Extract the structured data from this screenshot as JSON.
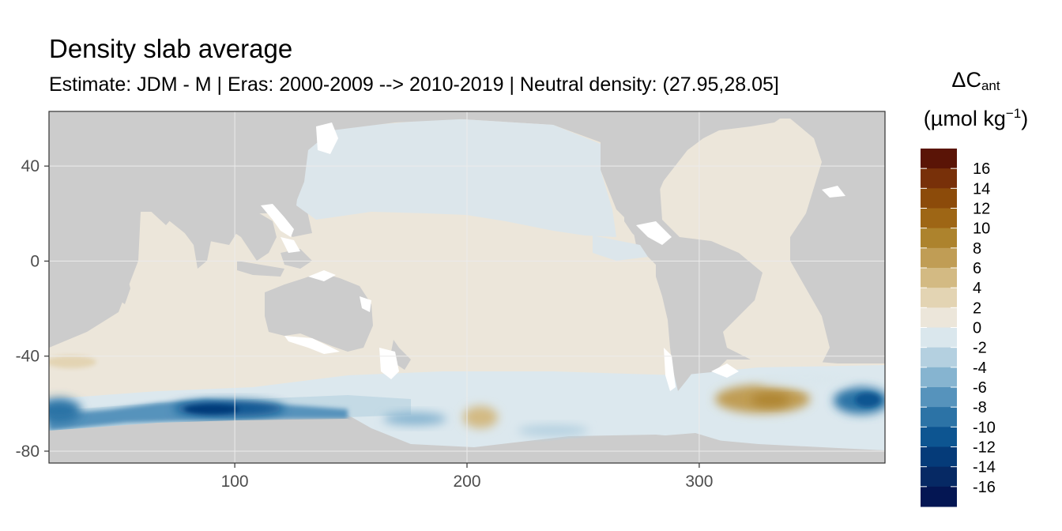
{
  "title": "Density slab average",
  "subtitle": "Estimate: JDM - M | Eras: 2000-2009 --> 2010-2019 | Neutral density: (27.95,28.05]",
  "legend": {
    "symbol": "ΔC",
    "symbol_sub": "ant",
    "unit_open": "(µmol kg",
    "unit_sup": "−1",
    "unit_close": ")",
    "breaks": [
      16,
      14,
      12,
      10,
      8,
      6,
      4,
      2,
      0,
      -2,
      -4,
      -6,
      -8,
      -10,
      -12,
      -14,
      -16
    ],
    "colors": [
      "#5a1406",
      "#783009",
      "#8c4b0a",
      "#9e6615",
      "#ad832d",
      "#c09d55",
      "#d3ba83",
      "#e3d4b3",
      "#ece6da",
      "#dae7ed",
      "#b4d0e0",
      "#86b4d0",
      "#5693bc",
      "#2c73a6",
      "#0d5591",
      "#053b79",
      "#062964",
      "#041653"
    ],
    "placement": "right"
  },
  "chart_data": {
    "type": "heatmap",
    "title": "Density slab average",
    "subtitle": "Estimate: JDM - M | Eras: 2000-2009 --> 2010-2019 | Neutral density: (27.95,28.05]",
    "xlabel": "",
    "ylabel": "",
    "xlim": [
      20,
      380
    ],
    "ylim": [
      -85,
      63
    ],
    "x_ticks": [
      100,
      200,
      300
    ],
    "y_ticks": [
      40,
      0,
      -40,
      -80
    ],
    "grid": true,
    "color_scale": {
      "variable": "ΔCant",
      "unit": "µmol kg-1",
      "breaks": [
        16,
        14,
        12,
        10,
        8,
        6,
        4,
        2,
        0,
        -2,
        -4,
        -6,
        -8,
        -10,
        -12,
        -14,
        -16
      ]
    },
    "background_ocean_value": {
      "north_pacific": -1,
      "tropical_band": 1,
      "south_pacific": 1,
      "atlantic": 1
    },
    "features": [
      {
        "label": "Southern Ocean Indian sector minimum",
        "lon": 95,
        "lat": -62,
        "value": -11
      },
      {
        "label": "Southern Ocean west Indian sector",
        "lon": 30,
        "lat": -63,
        "value": -7
      },
      {
        "label": "South Pacific patch",
        "lon": 205,
        "lat": -65,
        "value": 5
      },
      {
        "label": "Weddell Sea maximum",
        "lon": 330,
        "lat": -58,
        "value": 6
      },
      {
        "label": "Southern Ocean east Atlantic minimum",
        "lon": 372,
        "lat": -57,
        "value": -10
      },
      {
        "label": "South Indian subantarctic patch",
        "lon": 38,
        "lat": -41,
        "value": 3
      }
    ]
  }
}
